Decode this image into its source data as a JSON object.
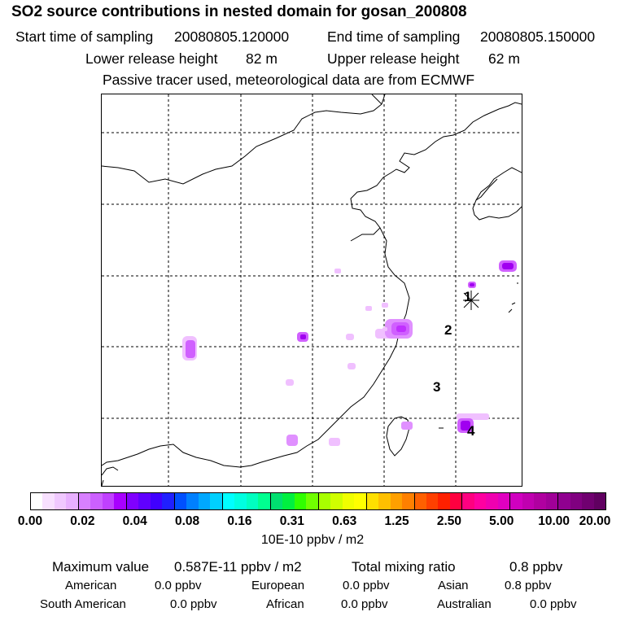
{
  "title": "SO2 source contributions in nested domain for gosan_200808",
  "header": {
    "start_label": "Start time of sampling",
    "start_value": "20080805.120000",
    "end_label": "End time of sampling",
    "end_value": "20080805.150000",
    "lower_label": "Lower release height",
    "lower_value": "82 m",
    "upper_label": "Upper release height",
    "upper_value": "62 m",
    "note": "Passive tracer used, meteorological data are from ECMWF"
  },
  "map": {
    "receptor_labels": [
      "1",
      "2",
      "3",
      "4"
    ],
    "plume_colors": [
      "#a000f0",
      "#c030ff",
      "#d060ff",
      "#e090ff",
      "#f0c0ff"
    ]
  },
  "colorbar": {
    "tick_labels": [
      "0.00",
      "0.02",
      "0.04",
      "0.08",
      "0.16",
      "0.31",
      "0.63",
      "1.25",
      "2.50",
      "5.00",
      "10.00",
      "20.00"
    ],
    "colors": [
      "#ffffff",
      "#f8e0ff",
      "#f0c8ff",
      "#e8b0ff",
      "#d880ff",
      "#cc60ff",
      "#c040ff",
      "#a800ff",
      "#8000ff",
      "#6000ff",
      "#4000ff",
      "#2020ff",
      "#0050ff",
      "#0080ff",
      "#00a8ff",
      "#00d0ff",
      "#00ffff",
      "#00ffe0",
      "#00ffc0",
      "#00ff90",
      "#00e070",
      "#00f040",
      "#30ff00",
      "#70ff00",
      "#a8ff00",
      "#d0ff00",
      "#f0ff00",
      "#ffff00",
      "#ffe000",
      "#ffc000",
      "#ffa000",
      "#ff8000",
      "#ff6000",
      "#ff4000",
      "#ff2000",
      "#ff0040",
      "#ff0080",
      "#ff00a0",
      "#f000b0",
      "#e000c0",
      "#d000c0",
      "#c000b0",
      "#b000a0",
      "#a00098",
      "#900090",
      "#800080",
      "#700070",
      "#600060"
    ],
    "units": "10E-10 ppbv / m2"
  },
  "stats": {
    "max_label": "Maximum value",
    "max_value": "0.587E-11 ppbv / m2",
    "total_label": "Total mixing ratio",
    "total_value": "0.8 ppbv",
    "regions": [
      {
        "name": "American",
        "value": "0.0 ppbv"
      },
      {
        "name": "European",
        "value": "0.0 ppbv"
      },
      {
        "name": "Asian",
        "value": "0.8 ppbv"
      },
      {
        "name": "South American",
        "value": "0.0 ppbv"
      },
      {
        "name": "African",
        "value": "0.0 ppbv"
      },
      {
        "name": "Australian",
        "value": "0.0 ppbv"
      }
    ]
  }
}
